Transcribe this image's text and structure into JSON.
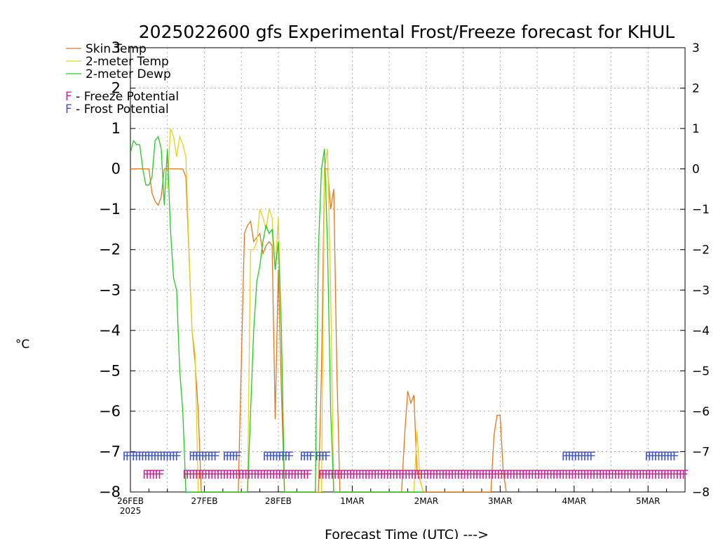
{
  "chart_data": {
    "type": "line",
    "title": "2025022600 gfs Experimental Frost/Freeze forecast for KHUL",
    "xlabel": "Forecast Time (UTC) --->",
    "ylabel": "°C",
    "ylim": [
      -8,
      3
    ],
    "grid": true,
    "legend_placement": "top-left",
    "x_ticks": [
      {
        "label": "26FEB",
        "sub": "2025",
        "hour": 0
      },
      {
        "label": "27FEB",
        "sub": "",
        "hour": 24
      },
      {
        "label": "28FEB",
        "sub": "",
        "hour": 48
      },
      {
        "label": "1MAR",
        "sub": "",
        "hour": 72
      },
      {
        "label": "2MAR",
        "sub": "",
        "hour": 96
      },
      {
        "label": "3MAR",
        "sub": "",
        "hour": 120
      },
      {
        "label": "4MAR",
        "sub": "",
        "hour": 144
      },
      {
        "label": "5MAR",
        "sub": "",
        "hour": 168
      }
    ],
    "x_range_hours": [
      0,
      180
    ],
    "y_ticks": [
      3,
      2,
      1,
      0,
      -1,
      -2,
      -3,
      -4,
      -5,
      -6,
      -7,
      -8
    ],
    "y_tick_labels": [
      "3",
      "2",
      "1",
      "0",
      "−1",
      "−2",
      "−3",
      "−4",
      "−5",
      "−6",
      "−7",
      "−8"
    ],
    "series": [
      {
        "name": "Skin Temp",
        "color": "#e07820",
        "points": [
          [
            0,
            0
          ],
          [
            6,
            0
          ],
          [
            7,
            -0.6
          ],
          [
            8,
            -0.8
          ],
          [
            9,
            -0.9
          ],
          [
            10,
            -0.7
          ],
          [
            11,
            0
          ],
          [
            17,
            0
          ],
          [
            18,
            -0.2
          ],
          [
            20,
            -4
          ],
          [
            21,
            -4.8
          ],
          [
            22,
            -6
          ],
          [
            23,
            -8
          ],
          [
            35,
            -8
          ],
          [
            37,
            -1.6
          ],
          [
            38,
            -1.4
          ],
          [
            39,
            -1.3
          ],
          [
            40,
            -1.8
          ],
          [
            41,
            -1.7
          ],
          [
            42,
            -1.6
          ],
          [
            43,
            -2.1
          ],
          [
            44,
            -1.9
          ],
          [
            45,
            -1.8
          ],
          [
            46,
            -1.9
          ],
          [
            47,
            -6.2
          ],
          [
            48,
            -2.5
          ],
          [
            49,
            -5.5
          ],
          [
            50,
            -8
          ],
          [
            61,
            -8
          ],
          [
            62,
            -5
          ],
          [
            63,
            0
          ],
          [
            64,
            0
          ],
          [
            65,
            -1
          ],
          [
            66,
            -0.5
          ],
          [
            67,
            -5
          ],
          [
            68,
            -8
          ],
          [
            88,
            -8
          ],
          [
            89,
            -6.6
          ],
          [
            90,
            -5.5
          ],
          [
            91,
            -5.8
          ],
          [
            92,
            -5.6
          ],
          [
            93,
            -7.5
          ],
          [
            94,
            -7.7
          ],
          [
            95,
            -8
          ],
          [
            117,
            -8
          ],
          [
            118,
            -6.6
          ],
          [
            119,
            -6.1
          ],
          [
            120,
            -6.1
          ],
          [
            121,
            -7.5
          ],
          [
            122,
            -8
          ]
        ]
      },
      {
        "name": "2-meter Temp",
        "color": "#e6d21e",
        "points": [
          [
            12,
            -0.5
          ],
          [
            13,
            1
          ],
          [
            14,
            0.8
          ],
          [
            15,
            0.3
          ],
          [
            16,
            0.8
          ],
          [
            17,
            0.6
          ],
          [
            18,
            0.3
          ],
          [
            19,
            -2
          ],
          [
            20,
            -4
          ],
          [
            21,
            -4.6
          ],
          [
            22,
            -8
          ],
          [
            38,
            -8
          ],
          [
            39,
            -2
          ],
          [
            40,
            -2
          ],
          [
            41,
            -1.8
          ],
          [
            42,
            -1
          ],
          [
            43,
            -1.2
          ],
          [
            44,
            -1.5
          ],
          [
            45,
            -1
          ],
          [
            46,
            -1.2
          ],
          [
            47,
            -2.5
          ],
          [
            48,
            -1.2
          ],
          [
            49,
            -4
          ],
          [
            50,
            -8
          ],
          [
            62,
            -8
          ],
          [
            63,
            0
          ],
          [
            64,
            0.5
          ],
          [
            65,
            -3
          ],
          [
            66,
            -8
          ],
          [
            92,
            -8
          ],
          [
            93,
            -6.5
          ],
          [
            94,
            -7.7
          ],
          [
            95,
            -8
          ]
        ]
      },
      {
        "name": "2-meter Dewp",
        "color": "#22cc22",
        "points": [
          [
            0,
            0.4
          ],
          [
            1,
            0.7
          ],
          [
            2,
            0.6
          ],
          [
            3,
            0.6
          ],
          [
            4,
            0
          ],
          [
            5,
            -0.4
          ],
          [
            6,
            -0.4
          ],
          [
            7,
            -0.2
          ],
          [
            8,
            0.7
          ],
          [
            9,
            0.8
          ],
          [
            10,
            0.5
          ],
          [
            11,
            -0.9
          ],
          [
            12,
            0.5
          ],
          [
            13,
            -1.5
          ],
          [
            14,
            -2.7
          ],
          [
            15,
            -3
          ],
          [
            16,
            -5
          ],
          [
            17,
            -6
          ],
          [
            18,
            -8
          ],
          [
            38,
            -8
          ],
          [
            40,
            -4
          ],
          [
            41,
            -2.8
          ],
          [
            42,
            -2.4
          ],
          [
            43,
            -1.8
          ],
          [
            44,
            -1.4
          ],
          [
            45,
            -1.6
          ],
          [
            46,
            -1.5
          ],
          [
            47,
            -2.5
          ],
          [
            48,
            -1.8
          ],
          [
            49,
            -4
          ],
          [
            50,
            -8
          ],
          [
            60,
            -8
          ],
          [
            61,
            -2
          ],
          [
            62,
            0
          ],
          [
            63,
            0.5
          ],
          [
            64,
            -2
          ],
          [
            65,
            -6
          ],
          [
            66,
            -8
          ],
          [
            95,
            -8
          ]
        ]
      }
    ],
    "legend": [
      {
        "label": "Skin Temp",
        "color": "#e07820"
      },
      {
        "label": "2-meter Temp",
        "color": "#e6d21e"
      },
      {
        "label": "2-meter Dewp",
        "color": "#22cc22"
      }
    ],
    "flags_legend": [
      {
        "symbol": "F",
        "text": " - Freeze Potential",
        "color": "#cc2299"
      },
      {
        "symbol": "F",
        "text": " - Frost Potential",
        "color": "#4455cc"
      }
    ],
    "frost_potential": {
      "symbol": "F",
      "color": "#4455cc",
      "y": -7.1,
      "runs": [
        [
          -1.5,
          16
        ],
        [
          20,
          28
        ],
        [
          31,
          35
        ],
        [
          44,
          52
        ],
        [
          56,
          59
        ],
        [
          61,
          64
        ],
        [
          141,
          150
        ],
        [
          168,
          177
        ]
      ]
    },
    "freeze_potential": {
      "symbol": "F",
      "color": "#cc2299",
      "y": -7.55,
      "runs": [
        [
          5,
          10
        ],
        [
          18,
          58
        ],
        [
          62,
          180
        ]
      ]
    }
  }
}
